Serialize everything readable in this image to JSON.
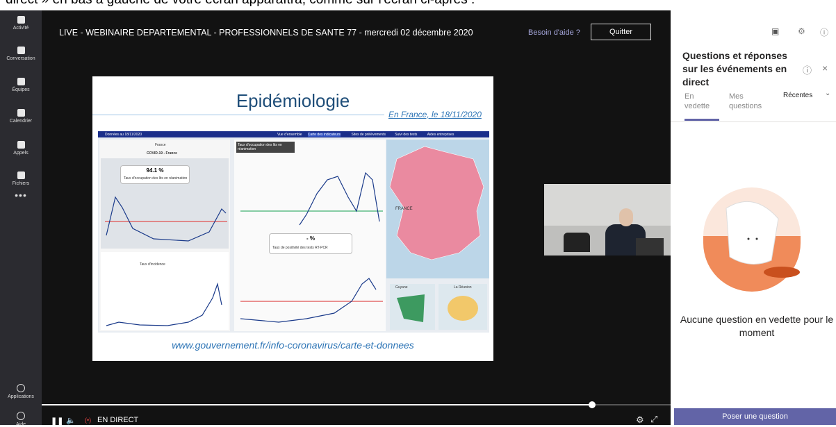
{
  "document_snippet": "direct » en bas à gauche de votre écran apparaîtra, comme sur l'écran ci-après :",
  "sidebar": {
    "items": [
      "Activité",
      "Conversation",
      "Équipes",
      "Calendrier",
      "Appels",
      "Fichiers"
    ],
    "bottom_items": [
      "Applications",
      "Aide"
    ]
  },
  "event": {
    "title": "LIVE - WEBINAIRE DEPARTEMENTAL - PROFESSIONNELS DE SANTE 77 - mercredi 02 décembre 2020",
    "help_link": "Besoin d'aide ?",
    "quit_button": "Quitter"
  },
  "slide": {
    "title": "Epidémiologie",
    "subtitle": "En France, le 18/11/2020",
    "url": "www.gouvernement.fr/info-coronavirus/carte-et-donnees",
    "dashboard": {
      "date": "Données au 18/11/2020",
      "tabs": [
        "Vue d'ensemble",
        "Carte des indicateurs",
        "Sites de prélèvements",
        "Suivi des tests",
        "Aides entreprises"
      ],
      "region": "France",
      "panel_title": "COVID-19 - France",
      "occupancy_value": "94.1 %",
      "occupancy_label": "Taux d'occupation des lits en réanimation",
      "incidence_label": "Taux d'incidence",
      "positivity_value": "- %",
      "positivity_label": "Taux de positivité des tests RT-PCR",
      "dropdown": "Taux d'occupation des lits en réanimation",
      "map_label": "FRANCE",
      "inset_labels": [
        "Guyane",
        "La Réunion"
      ]
    }
  },
  "player": {
    "live_label": "EN DIRECT"
  },
  "qa_panel": {
    "title": "Questions et réponses sur les événements en direct",
    "tabs": [
      "En vedette",
      "Mes questions"
    ],
    "sort": "Récentes",
    "empty_message": "Aucune question en vedette pour le moment",
    "ask_button": "Poser une question"
  }
}
